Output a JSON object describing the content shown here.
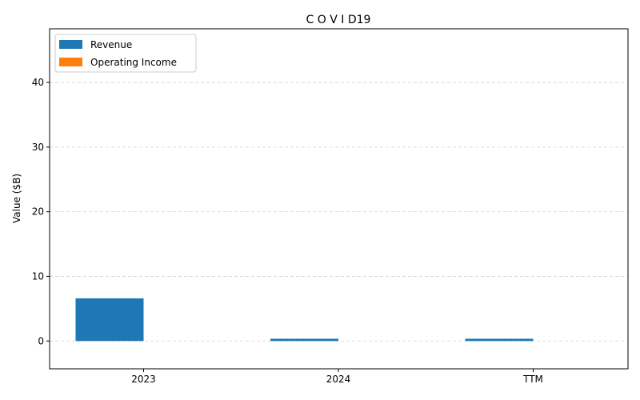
{
  "chart_data": {
    "type": "bar",
    "title": "C O V I D19",
    "xlabel": "",
    "ylabel": "Value ($B)",
    "categories": [
      "2023",
      "2024",
      "TTM"
    ],
    "series": [
      {
        "name": "Revenue",
        "values": [
          6.6,
          0.35,
          0.35
        ],
        "color": "#1f77b4"
      },
      {
        "name": "Operating Income",
        "values": [
          0,
          0,
          0
        ],
        "color": "#ff7f0e"
      }
    ],
    "ylim": [
      -4.3,
      48.3
    ],
    "yticks": [
      0,
      10,
      20,
      30,
      40
    ],
    "grid": "y-dashed",
    "legend": "top-left"
  }
}
